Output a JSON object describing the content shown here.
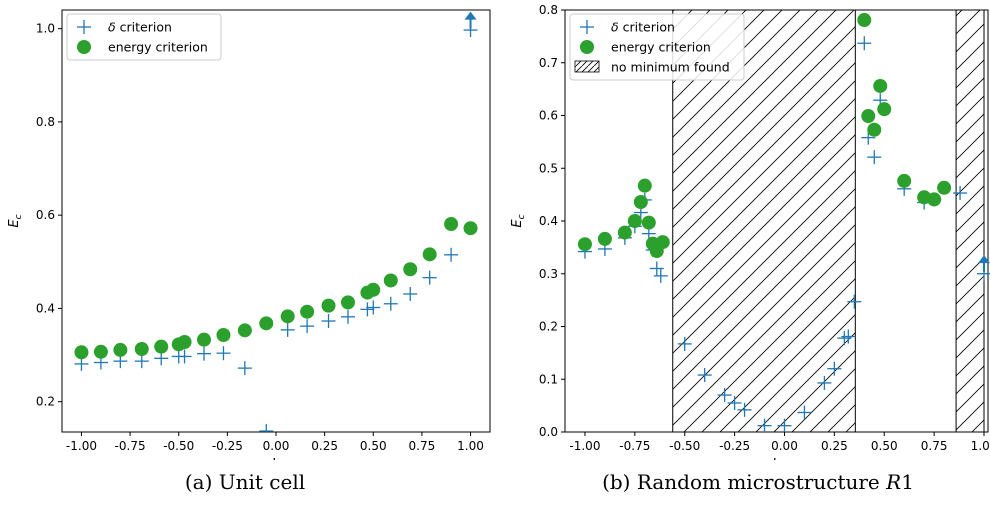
{
  "chart_data": [
    {
      "type": "scatter",
      "xlabel": "L",
      "ylabel": "E_c",
      "xlim": [
        -1.1,
        1.1
      ],
      "ylim": [
        0.135,
        1.04
      ],
      "xticks": [
        "-1.00",
        "-0.75",
        "-0.50",
        "-0.25",
        "0.00",
        "0.25",
        "0.50",
        "0.75",
        "1.00"
      ],
      "xtick_values": [
        -1.0,
        -0.75,
        -0.5,
        -0.25,
        0.0,
        0.25,
        0.5,
        0.75,
        1.0
      ],
      "yticks": [
        "0.2",
        "0.4",
        "0.6",
        "0.8",
        "1.0"
      ],
      "ytick_values": [
        0.2,
        0.4,
        0.6,
        0.8,
        1.0
      ],
      "legend": {
        "position": "top-left",
        "entries": [
          "δ criterion",
          "energy criterion"
        ]
      },
      "series": [
        {
          "name": "δ criterion",
          "marker": "plus",
          "color": "#1f77b4",
          "x": [
            -1.0,
            -0.9,
            -0.8,
            -0.69,
            -0.59,
            -0.5,
            -0.47,
            -0.37,
            -0.27,
            -0.16,
            -0.05,
            0.06,
            0.16,
            0.27,
            0.37,
            0.47,
            0.5,
            0.59,
            0.69,
            0.79,
            0.9,
            1.0
          ],
          "y": [
            0.281,
            0.284,
            0.287,
            0.287,
            0.293,
            0.297,
            0.297,
            0.303,
            0.304,
            0.272,
            0.137,
            0.354,
            0.362,
            0.373,
            0.382,
            0.398,
            0.402,
            0.41,
            0.431,
            0.466,
            0.515,
            0.997
          ]
        },
        {
          "name": "energy criterion",
          "marker": "circle",
          "color": "#2ca02c",
          "x": [
            -1.0,
            -0.9,
            -0.8,
            -0.69,
            -0.59,
            -0.5,
            -0.47,
            -0.37,
            -0.27,
            -0.16,
            -0.05,
            0.06,
            0.16,
            0.27,
            0.37,
            0.47,
            0.5,
            0.59,
            0.69,
            0.79,
            0.9,
            1.0
          ],
          "y": [
            0.306,
            0.307,
            0.311,
            0.313,
            0.318,
            0.323,
            0.328,
            0.333,
            0.343,
            0.353,
            0.368,
            0.383,
            0.393,
            0.406,
            0.413,
            0.434,
            0.44,
            0.46,
            0.484,
            0.516,
            0.581,
            0.572
          ]
        }
      ],
      "arrows": [
        {
          "x": 1.0,
          "y": 1.0,
          "direction": "up",
          "color": "#1f77b4"
        }
      ]
    },
    {
      "type": "scatter",
      "xlabel": "L",
      "ylabel": "E_c",
      "xlim": [
        -1.1,
        1.02
      ],
      "ylim": [
        0.0,
        0.8
      ],
      "xticks": [
        "-1.00",
        "-0.75",
        "-0.50",
        "-0.25",
        "0.00",
        "0.25",
        "0.50",
        "0.75",
        "1.00"
      ],
      "xtick_values": [
        -1.0,
        -0.75,
        -0.5,
        -0.25,
        0.0,
        0.25,
        0.5,
        0.75,
        1.0
      ],
      "yticks": [
        "0.0",
        "0.1",
        "0.2",
        "0.3",
        "0.4",
        "0.5",
        "0.6",
        "0.7",
        "0.8"
      ],
      "ytick_values": [
        0.0,
        0.1,
        0.2,
        0.3,
        0.4,
        0.5,
        0.6,
        0.7,
        0.8
      ],
      "legend": {
        "position": "top-left",
        "entries": [
          "δ criterion",
          "energy criterion",
          "no minimum found"
        ]
      },
      "hatched_regions": [
        [
          -0.56,
          0.355
        ],
        [
          0.86,
          1.0
        ]
      ],
      "series": [
        {
          "name": "δ criterion",
          "marker": "plus",
          "color": "#1f77b4",
          "x": [
            -1.0,
            -0.9,
            -0.8,
            -0.75,
            -0.72,
            -0.7,
            -0.68,
            -0.66,
            -0.64,
            -0.62,
            -0.5,
            -0.4,
            -0.3,
            -0.25,
            -0.2,
            -0.1,
            0.0,
            0.1,
            0.2,
            0.25,
            0.3,
            0.32,
            0.35,
            0.4,
            0.42,
            0.45,
            0.48,
            0.6,
            0.7,
            0.75,
            0.88,
            1.0
          ],
          "y": [
            0.342,
            0.347,
            0.368,
            0.39,
            0.416,
            0.44,
            0.376,
            0.345,
            0.31,
            0.296,
            0.167,
            0.108,
            0.07,
            0.055,
            0.042,
            0.012,
            0.012,
            0.037,
            0.093,
            0.12,
            0.178,
            0.181,
            0.247,
            0.737,
            0.558,
            0.521,
            0.629,
            0.461,
            0.435,
            0.441,
            0.453,
            0.3
          ]
        },
        {
          "name": "energy criterion",
          "marker": "circle",
          "color": "#2ca02c",
          "x": [
            -1.0,
            -0.9,
            -0.8,
            -0.75,
            -0.72,
            -0.7,
            -0.68,
            -0.66,
            -0.64,
            -0.61,
            0.4,
            0.42,
            0.45,
            0.48,
            0.5,
            0.6,
            0.7,
            0.75,
            0.8
          ],
          "y": [
            0.356,
            0.366,
            0.378,
            0.4,
            0.436,
            0.467,
            0.397,
            0.357,
            0.343,
            0.36,
            0.781,
            0.599,
            0.573,
            0.656,
            0.612,
            0.476,
            0.445,
            0.441,
            0.463
          ]
        }
      ],
      "arrows": [
        {
          "x": 1.0,
          "y": 0.303,
          "direction": "up",
          "color": "#1f77b4"
        }
      ]
    }
  ],
  "captions": {
    "a_prefix": "(a) Unit cell",
    "b_prefix": "(b) Random microstructure ",
    "b_italic": "R",
    "b_suffix": "1"
  },
  "colors": {
    "delta": "#1f77b4",
    "energy": "#2ca02c",
    "axis": "#000000",
    "legend_border": "#cccccc"
  }
}
